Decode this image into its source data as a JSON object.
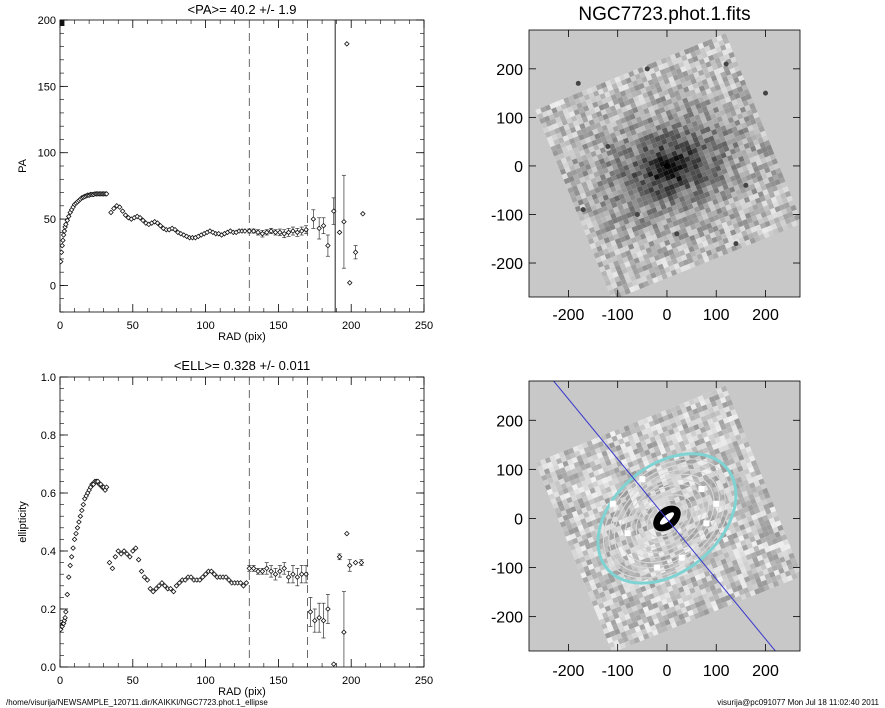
{
  "footer": {
    "path": "/home/visurija/NEWSAMPLE_120711.dir/KAIKKI/NGC7723.phot.1_ellipse",
    "stamp": "visurija@pc091077  Mon Jul 18 11:02:40 2011"
  },
  "chart_data": [
    {
      "type": "scatter",
      "title": "<PA>=  40.2 +/-   1.9",
      "xlabel": "RAD (pix)",
      "ylabel": "PA",
      "xlim": [
        0,
        250
      ],
      "ylim": [
        -20,
        200
      ],
      "xticks": [
        "0",
        "50",
        "100",
        "150",
        "200",
        "250"
      ],
      "yticks": [
        "0",
        "50",
        "100",
        "150",
        "200"
      ],
      "ytick_values": [
        0,
        50,
        100,
        150,
        200
      ],
      "vlines_dashed": [
        130,
        170
      ],
      "vline_solid": 189,
      "series": [
        {
          "x": [
            0.5,
            1,
            1.5,
            2,
            2.5,
            3,
            3.5,
            4,
            5,
            6,
            7,
            8,
            9,
            10,
            11,
            12,
            13,
            14,
            15,
            16,
            17,
            18,
            19,
            20,
            21,
            22,
            23,
            24,
            25,
            26,
            27,
            28,
            29,
            30,
            31,
            32,
            35,
            37,
            39,
            41,
            43,
            45,
            47,
            49,
            51,
            53,
            55,
            57,
            59,
            61,
            63,
            65,
            67,
            69,
            71,
            73,
            75,
            77,
            79,
            81,
            83,
            85,
            87,
            89,
            91,
            93,
            95,
            97,
            99,
            101,
            103,
            105,
            107,
            109,
            111,
            113,
            115,
            117,
            119,
            121,
            123,
            125,
            127
          ],
          "y": [
            18,
            25,
            30,
            34,
            38,
            41,
            44,
            46,
            49,
            52,
            55,
            57,
            59,
            61,
            62,
            63,
            64,
            65,
            66,
            66.5,
            67,
            67.5,
            68,
            68,
            68.5,
            68.5,
            68.5,
            69,
            69,
            69,
            69,
            69,
            69,
            69,
            69,
            69,
            55,
            58,
            60,
            59,
            56,
            53,
            51,
            50,
            51,
            52,
            51,
            49,
            47,
            46,
            47,
            48,
            47,
            45,
            43,
            42,
            42,
            43,
            42,
            40,
            39,
            38,
            37,
            36,
            36,
            36,
            37,
            38,
            39,
            40,
            41,
            40,
            39,
            39,
            38,
            39,
            40,
            41,
            40,
            40,
            41,
            41,
            41
          ],
          "marker": "diamond"
        },
        {
          "x": [
            130,
            133,
            136,
            139,
            142,
            145,
            148,
            151,
            154,
            157,
            160,
            163,
            166,
            169
          ],
          "y": [
            41,
            41,
            40,
            39,
            40,
            41,
            40,
            40,
            39,
            40,
            41,
            40,
            41,
            42
          ],
          "err": [
            1.5,
            1.5,
            2,
            2.5,
            2,
            2,
            2,
            2.5,
            3,
            3,
            3,
            3,
            3,
            3
          ],
          "marker": "diamond"
        },
        {
          "x": [
            174,
            178,
            181,
            184,
            188,
            192,
            195,
            197,
            199,
            203,
            208
          ],
          "y": [
            50,
            43,
            45,
            30,
            56,
            40,
            48,
            182,
            2,
            25,
            54
          ],
          "err": [
            7,
            8,
            6,
            8,
            10,
            0,
            35,
            0,
            0,
            5,
            0
          ],
          "marker": "diamond"
        }
      ],
      "flag_points": [
        {
          "x": 0.5,
          "y": 200
        },
        {
          "x": 1,
          "y": 200
        },
        {
          "x": 1.5,
          "y": 200
        },
        {
          "x": 2,
          "y": 200
        }
      ]
    },
    {
      "type": "scatter",
      "title": "<ELL>= 0.328 +/-  0.011",
      "xlabel": "RAD (pix)",
      "ylabel": "ellipticity",
      "xlim": [
        0,
        250
      ],
      "ylim": [
        0,
        1
      ],
      "xticks": [
        "0",
        "50",
        "100",
        "150",
        "200",
        "250"
      ],
      "yticks": [
        "0.0",
        "0.2",
        "0.4",
        "0.6",
        "0.8",
        "1.0"
      ],
      "ytick_values": [
        0,
        0.2,
        0.4,
        0.6,
        0.8,
        1.0
      ],
      "vlines_dashed": [
        130,
        170
      ],
      "series": [
        {
          "x": [
            0.5,
            1,
            1.5,
            2,
            2.5,
            3,
            3.5,
            4,
            5,
            6,
            7,
            8,
            9,
            10,
            11,
            12,
            13,
            14,
            15,
            16,
            17,
            18,
            19,
            20,
            21,
            22,
            23,
            24,
            25,
            26,
            27,
            28,
            29,
            30,
            31,
            32,
            34,
            36,
            38,
            40,
            42,
            44,
            46,
            48,
            50,
            52,
            54,
            56,
            58,
            60,
            62,
            64,
            66,
            68,
            70,
            72,
            74,
            76,
            78,
            80,
            82,
            84,
            86,
            88,
            90,
            92,
            94,
            96,
            98,
            100,
            102,
            104,
            106,
            108,
            110,
            112,
            114,
            116,
            118,
            120,
            122,
            124,
            126,
            128
          ],
          "y": [
            0.13,
            0.14,
            0.14,
            0.15,
            0.15,
            0.16,
            0.17,
            0.19,
            0.25,
            0.31,
            0.35,
            0.38,
            0.41,
            0.44,
            0.46,
            0.48,
            0.5,
            0.52,
            0.54,
            0.56,
            0.58,
            0.59,
            0.6,
            0.61,
            0.62,
            0.63,
            0.63,
            0.64,
            0.64,
            0.64,
            0.63,
            0.63,
            0.62,
            0.62,
            0.61,
            0.62,
            0.36,
            0.34,
            0.38,
            0.4,
            0.39,
            0.4,
            0.39,
            0.38,
            0.4,
            0.41,
            0.37,
            0.33,
            0.31,
            0.3,
            0.27,
            0.26,
            0.27,
            0.28,
            0.29,
            0.28,
            0.27,
            0.27,
            0.26,
            0.28,
            0.29,
            0.3,
            0.3,
            0.31,
            0.31,
            0.3,
            0.3,
            0.3,
            0.31,
            0.32,
            0.33,
            0.33,
            0.32,
            0.31,
            0.31,
            0.31,
            0.31,
            0.3,
            0.29,
            0.29,
            0.29,
            0.29,
            0.28,
            0.29
          ],
          "marker": "diamond"
        },
        {
          "x": [
            130,
            133,
            136,
            139,
            142,
            145,
            148,
            151,
            154,
            157,
            160,
            163,
            166,
            169
          ],
          "y": [
            0.34,
            0.34,
            0.33,
            0.33,
            0.34,
            0.33,
            0.32,
            0.33,
            0.34,
            0.31,
            0.32,
            0.31,
            0.32,
            0.32
          ],
          "err": [
            0.01,
            0.01,
            0.01,
            0.01,
            0.02,
            0.02,
            0.02,
            0.02,
            0.02,
            0.02,
            0.03,
            0.03,
            0.03,
            0.03
          ],
          "marker": "diamond"
        },
        {
          "x": [
            172,
            175,
            178,
            181,
            184,
            188,
            192,
            195,
            197,
            199,
            203,
            207
          ],
          "y": [
            0.19,
            0.16,
            0.17,
            0.16,
            0.2,
            0.01,
            0.38,
            0.12,
            0.46,
            0.35,
            0.36,
            0.36
          ],
          "err": [
            0.05,
            0.04,
            0.05,
            0.06,
            0.05,
            0,
            0.01,
            0.14,
            0,
            0.02,
            0,
            0.01
          ],
          "marker": "diamond"
        }
      ]
    },
    {
      "type": "heatmap",
      "title": "NGC7723.phot.1.fits",
      "xlim": [
        -280,
        270
      ],
      "ylim": [
        -270,
        280
      ],
      "xticks": [
        "-200",
        "-100",
        "0",
        "100",
        "200"
      ],
      "yticks": [
        "-200",
        "-100",
        "0",
        "100",
        "200"
      ],
      "tick_values": [
        -200,
        -100,
        0,
        100,
        200
      ],
      "colormap": "grayscale-inverted",
      "background_color": "#c8c8c8"
    },
    {
      "type": "heatmap",
      "title": "",
      "xlim": [
        -280,
        270
      ],
      "ylim": [
        -270,
        280
      ],
      "xticks": [
        "-200",
        "-100",
        "0",
        "100",
        "200"
      ],
      "yticks": [
        "-200",
        "-100",
        "0",
        "100",
        "200"
      ],
      "tick_values": [
        -200,
        -100,
        0,
        100,
        200
      ],
      "overlay": {
        "contours": "ellipse isophotes",
        "contour_color": "#d8d8d8",
        "outer_contour_color": "#7fd3d3",
        "major_axis_line_color": "#3a3acc",
        "mask_color": "#ffffff"
      },
      "background_color": "#c8c8c8"
    }
  ]
}
